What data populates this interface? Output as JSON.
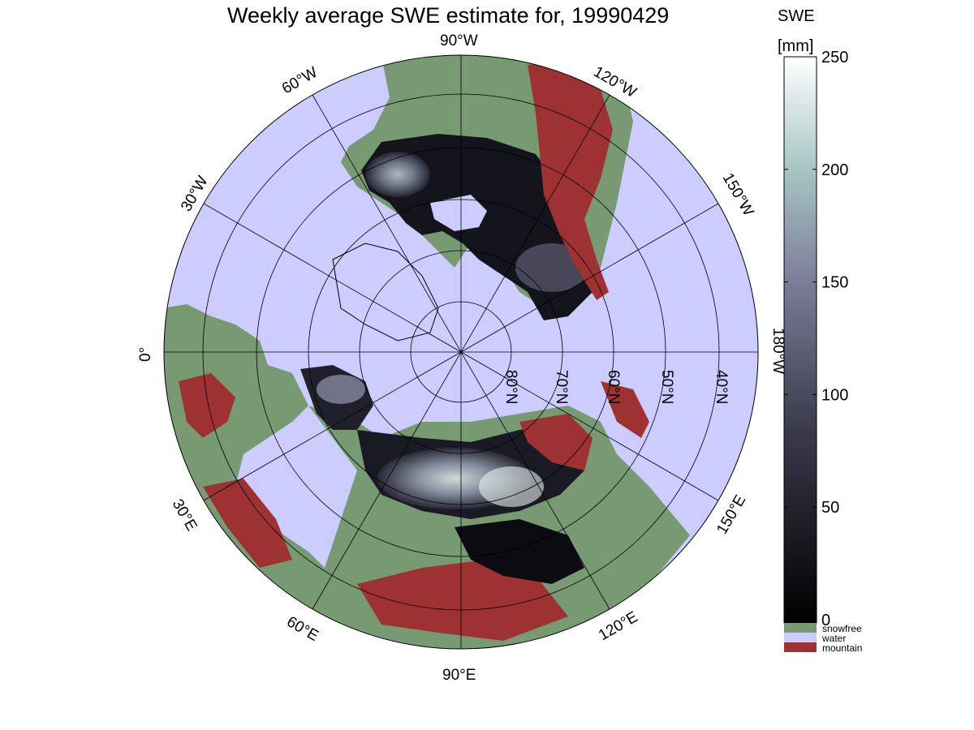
{
  "title": "Weekly average SWE estimate for, 19990429",
  "colorbar": {
    "title_line1": "SWE",
    "title_line2": "[mm]",
    "ticks": [
      "250",
      "200",
      "150",
      "100",
      "50",
      "0"
    ],
    "tick_values": [
      250,
      200,
      150,
      100,
      50,
      0
    ],
    "range": [
      0,
      250
    ],
    "categories": [
      {
        "label": "snowfree",
        "color": "#779a72"
      },
      {
        "label": "water",
        "color": "#ccccff"
      },
      {
        "label": "mountain",
        "color": "#9e3232"
      }
    ]
  },
  "longitude_labels": {
    "lon_90w": "90°W",
    "lon_120w": "120°W",
    "lon_60w": "60°W",
    "lon_150w": "150°W",
    "lon_30w": "30°W",
    "lon_180w": "180°W",
    "lon_0": "0°",
    "lon_30e": "30°E",
    "lon_150e": "150°E",
    "lon_60e": "60°E",
    "lon_120e": "120°E",
    "lon_90e": "90°E"
  },
  "latitude_labels": {
    "lat_80n": "80°N",
    "lat_70n": "70°N",
    "lat_60n": "60°N",
    "lat_50n": "50°N",
    "lat_40n": "40°N"
  },
  "colors": {
    "water": "#ccccff",
    "snowfree": "#779a72",
    "mountain": "#9e3232",
    "swe_low": "#0b0b10",
    "swe_mid": "#6c6c88",
    "swe_high": "#ffffff"
  }
}
